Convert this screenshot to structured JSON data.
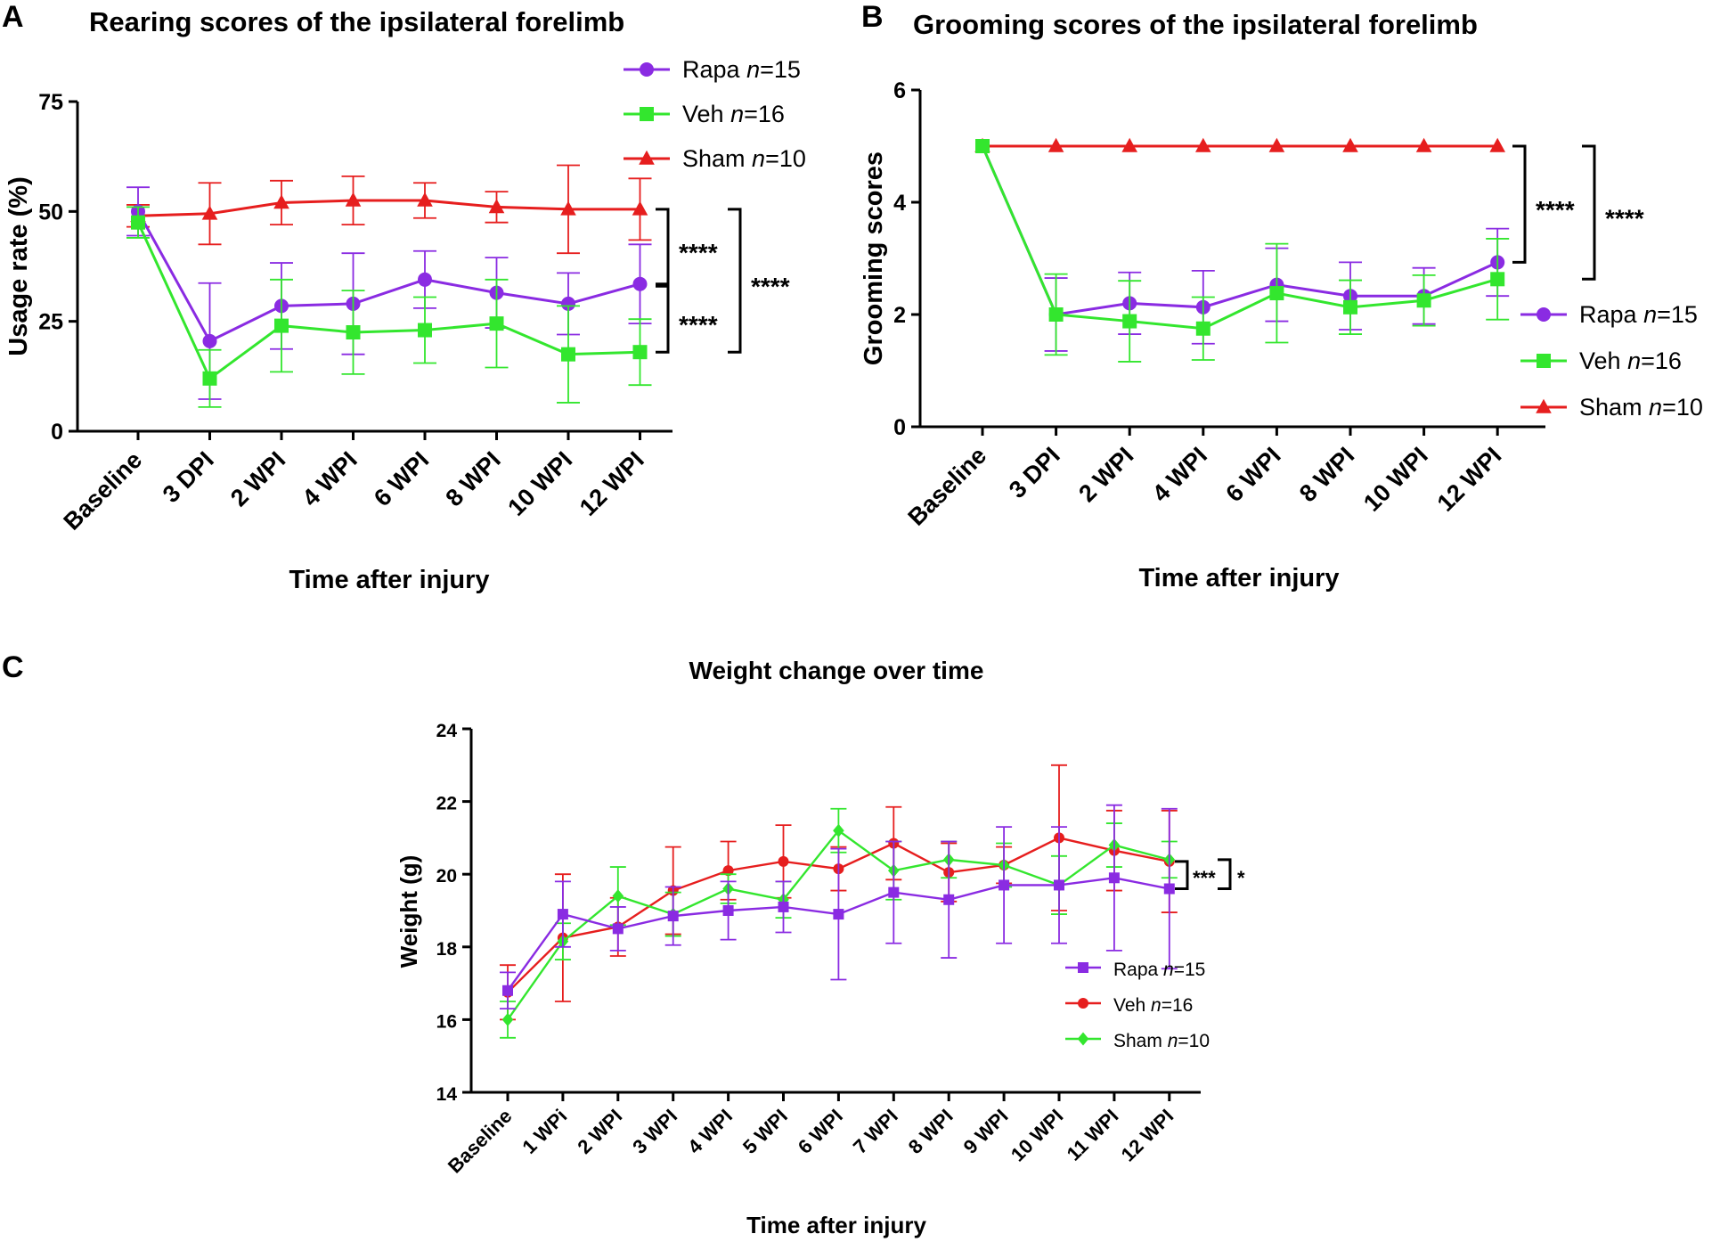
{
  "chart_data": [
    {
      "panel": "A",
      "type": "line",
      "title": "Rearing scores of the ipsilateral forelimb",
      "xlabel": "Time after injury",
      "ylabel": "Usage rate (%)",
      "ylim": [
        0,
        75
      ],
      "yticks": [
        0,
        25,
        50,
        75
      ],
      "categories": [
        "Baseline",
        "3 DPI",
        "2 WPI",
        "4 WPI",
        "6 WPI",
        "8 WPI",
        "10 WPI",
        "12 WPI"
      ],
      "series": [
        {
          "name": "Rapa",
          "n_label": "n",
          "n_value": "=15",
          "color": "#8A2BE2",
          "marker": "circle",
          "values": [
            50,
            20.5,
            28.5,
            29,
            34.5,
            31.5,
            29,
            33.5
          ],
          "errors": [
            5.5,
            13.2,
            9.8,
            11.5,
            6.5,
            8,
            7,
            9
          ]
        },
        {
          "name": "Veh",
          "n_label": "n",
          "n_value": "=16",
          "color": "#33E62E",
          "marker": "square",
          "values": [
            47.5,
            12,
            24,
            22.5,
            23,
            24.5,
            17.5,
            18
          ],
          "errors": [
            3.5,
            6.5,
            10.5,
            9.5,
            7.5,
            10,
            11,
            7.5
          ]
        },
        {
          "name": "Sham",
          "n_label": "n",
          "n_value": "=10",
          "color": "#E61E1E",
          "marker": "triangle",
          "values": [
            49,
            49.5,
            52,
            52.5,
            52.5,
            51,
            50.5,
            50.5
          ],
          "errors": [
            2.5,
            7,
            5,
            5.5,
            4,
            3.5,
            10,
            7
          ]
        }
      ],
      "significance": [
        {
          "label": "****",
          "between": [
            "Sham",
            "Rapa"
          ]
        },
        {
          "label": "****",
          "between": [
            "Rapa",
            "Veh"
          ]
        },
        {
          "label": "****",
          "between": [
            "Sham",
            "Veh"
          ]
        }
      ]
    },
    {
      "panel": "B",
      "type": "line",
      "title": "Grooming scores of the ipsilateral forelimb",
      "xlabel": "Time after injury",
      "ylabel": "Grooming scores",
      "ylim": [
        0,
        6
      ],
      "yticks": [
        0,
        2,
        4,
        6
      ],
      "categories": [
        "Baseline",
        "3 DPI",
        "2 WPI",
        "4 WPI",
        "6 WPI",
        "8 WPI",
        "10 WPI",
        "12 WPI"
      ],
      "series": [
        {
          "name": "Rapa",
          "n_label": "n",
          "n_value": "=15",
          "color": "#8A2BE2",
          "marker": "circle",
          "values": [
            5,
            2,
            2.2,
            2.13,
            2.53,
            2.33,
            2.33,
            2.93
          ],
          "errors": [
            0,
            0.65,
            0.55,
            0.65,
            0.65,
            0.6,
            0.5,
            0.6
          ]
        },
        {
          "name": "Veh",
          "n_label": "n",
          "n_value": "=16",
          "color": "#33E62E",
          "marker": "square",
          "values": [
            5,
            2,
            1.88,
            1.75,
            2.38,
            2.13,
            2.25,
            2.63
          ],
          "errors": [
            0,
            0.72,
            0.72,
            0.56,
            0.88,
            0.48,
            0.45,
            0.72
          ]
        },
        {
          "name": "Sham",
          "n_label": "n",
          "n_value": "=10",
          "color": "#E61E1E",
          "marker": "triangle",
          "values": [
            5,
            5,
            5,
            5,
            5,
            5,
            5,
            5
          ],
          "errors": [
            0,
            0,
            0,
            0,
            0,
            0,
            0,
            0
          ]
        }
      ],
      "significance": [
        {
          "label": "****",
          "between": [
            "Sham",
            "Rapa"
          ]
        },
        {
          "label": "****",
          "between": [
            "Sham",
            "Veh"
          ]
        }
      ]
    },
    {
      "panel": "C",
      "type": "line",
      "title": "Weight change over time",
      "xlabel": "Time after injury",
      "ylabel": "Weight (g)",
      "ylim": [
        14,
        24
      ],
      "yticks": [
        14,
        16,
        18,
        20,
        22,
        24
      ],
      "categories": [
        "Baseline",
        "1 WPi",
        "2 WPI",
        "3 WPI",
        "4 WPI",
        "5 WPI",
        "6 WPI",
        "7 WPI",
        "8 WPI",
        "9 WPI",
        "10 WPI",
        "11 WPI",
        "12 WPI"
      ],
      "series": [
        {
          "name": "Rapa",
          "n_label": "n",
          "n_value": "=15",
          "color": "#8A2BE2",
          "marker": "square",
          "values": [
            16.8,
            18.9,
            18.5,
            18.85,
            19.0,
            19.1,
            18.9,
            19.5,
            19.3,
            19.7,
            19.7,
            19.9,
            19.6
          ],
          "errors": [
            0.5,
            0.9,
            0.6,
            0.8,
            0.8,
            0.7,
            1.8,
            1.4,
            1.6,
            1.6,
            1.6,
            2.0,
            2.2
          ]
        },
        {
          "name": "Veh",
          "n_label": "n",
          "n_value": "=16",
          "color": "#E61E1E",
          "marker": "circle",
          "values": [
            16.75,
            18.25,
            18.55,
            19.55,
            20.1,
            20.35,
            20.15,
            20.85,
            20.05,
            20.25,
            21.0,
            20.65,
            20.35
          ],
          "errors": [
            0.75,
            1.75,
            0.8,
            1.2,
            0.8,
            1.0,
            0.6,
            1.0,
            0.8,
            0.5,
            2.0,
            1.1,
            1.4
          ]
        },
        {
          "name": "Sham",
          "n_label": "n",
          "n_value": "=10",
          "color": "#33E62E",
          "marker": "diamond",
          "values": [
            16.0,
            18.15,
            19.4,
            18.9,
            19.6,
            19.3,
            21.2,
            20.1,
            20.4,
            20.25,
            19.7,
            20.8,
            20.4
          ],
          "errors": [
            0.5,
            0.5,
            0.8,
            0.6,
            0.4,
            0.5,
            0.6,
            0.8,
            0.5,
            0.6,
            0.8,
            0.6,
            0.5
          ]
        }
      ],
      "significance": [
        {
          "label": "***",
          "between": [
            "Veh",
            "Rapa"
          ]
        },
        {
          "label": "*",
          "between": [
            "Sham",
            "Rapa"
          ]
        }
      ]
    }
  ]
}
